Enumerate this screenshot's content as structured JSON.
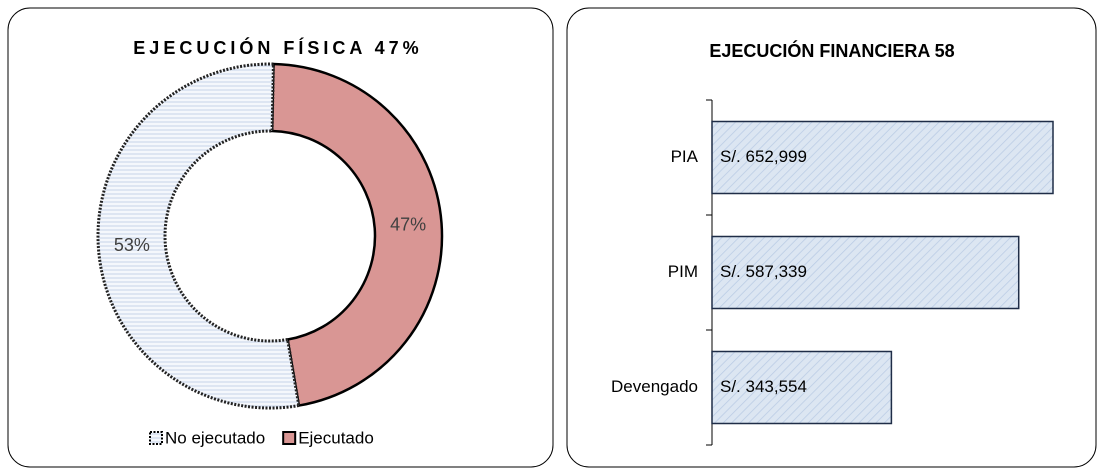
{
  "chart_data": [
    {
      "type": "donut",
      "title": "EJECUCIÓN FÍSICA 47%",
      "categories": [
        "No ejecutado",
        "Ejecutado"
      ],
      "values": [
        53,
        47
      ],
      "value_labels": [
        "53%",
        "47%"
      ],
      "colors": [
        "#eef3fa",
        "#d99694"
      ],
      "legend": "bottom"
    },
    {
      "type": "barh",
      "title": "EJECUCIÓN FINANCIERA 58",
      "categories": [
        "PIA",
        "PIM",
        "Devengado"
      ],
      "values": [
        652999,
        587339,
        343554
      ],
      "value_labels": [
        "S/. 652,999",
        "S/. 587,339",
        "S/. 343,554"
      ],
      "color": "#dce6f2"
    }
  ]
}
